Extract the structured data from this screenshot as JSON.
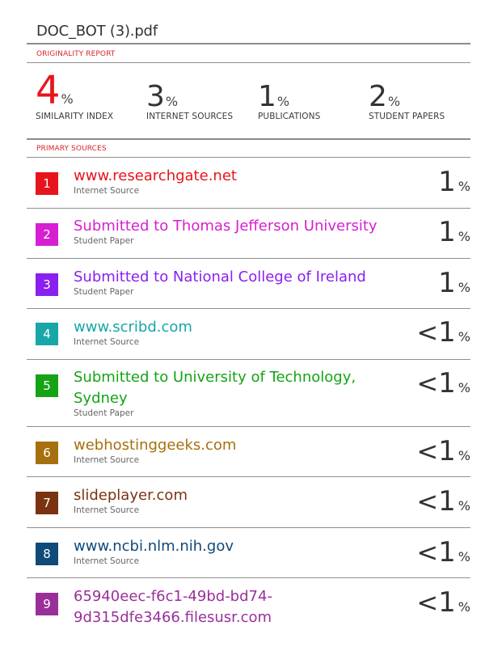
{
  "document": {
    "title": "DOC_BOT (3).pdf"
  },
  "report": {
    "section_label": "ORIGINALITY REPORT",
    "stats": [
      {
        "value": "4",
        "unit": "%",
        "label": "SIMILARITY INDEX"
      },
      {
        "value": "3",
        "unit": "%",
        "label": "INTERNET SOURCES"
      },
      {
        "value": "1",
        "unit": "%",
        "label": "PUBLICATIONS"
      },
      {
        "value": "2",
        "unit": "%",
        "label": "STUDENT PAPERS"
      }
    ],
    "accent_color": "#e8141c"
  },
  "primary_sources": {
    "section_label": "PRIMARY SOURCES",
    "items": [
      {
        "rank": "1",
        "name": "www.researchgate.net",
        "type": "Internet Source",
        "prefix": "",
        "value": "1",
        "unit": "%",
        "color": "#e8141c"
      },
      {
        "rank": "2",
        "name": "Submitted to Thomas Jefferson University",
        "type": "Student Paper",
        "prefix": "",
        "value": "1",
        "unit": "%",
        "color": "#d61fd3"
      },
      {
        "rank": "3",
        "name": "Submitted to National College of Ireland",
        "type": "Student Paper",
        "prefix": "",
        "value": "1",
        "unit": "%",
        "color": "#8a1ff0"
      },
      {
        "rank": "4",
        "name": "www.scribd.com",
        "type": "Internet Source",
        "prefix": "<",
        "value": "1",
        "unit": "%",
        "color": "#19a6a6"
      },
      {
        "rank": "5",
        "name": "Submitted to University of Technology, Sydney",
        "type": "Student Paper",
        "prefix": "<",
        "value": "1",
        "unit": "%",
        "color": "#15a315"
      },
      {
        "rank": "6",
        "name": "webhostinggeeks.com",
        "type": "Internet Source",
        "prefix": "<",
        "value": "1",
        "unit": "%",
        "color": "#a6700e"
      },
      {
        "rank": "7",
        "name": "slideplayer.com",
        "type": "Internet Source",
        "prefix": "<",
        "value": "1",
        "unit": "%",
        "color": "#7a3211"
      },
      {
        "rank": "8",
        "name": "www.ncbi.nlm.nih.gov",
        "type": "Internet Source",
        "prefix": "<",
        "value": "1",
        "unit": "%",
        "color": "#0f4a7a"
      },
      {
        "rank": "9",
        "name": "65940eec-f6c1-49bd-bd74-9d315dfe3466.filesusr.com",
        "type": "",
        "prefix": "<",
        "value": "1",
        "unit": "%",
        "color": "#9a2f9a"
      }
    ]
  }
}
